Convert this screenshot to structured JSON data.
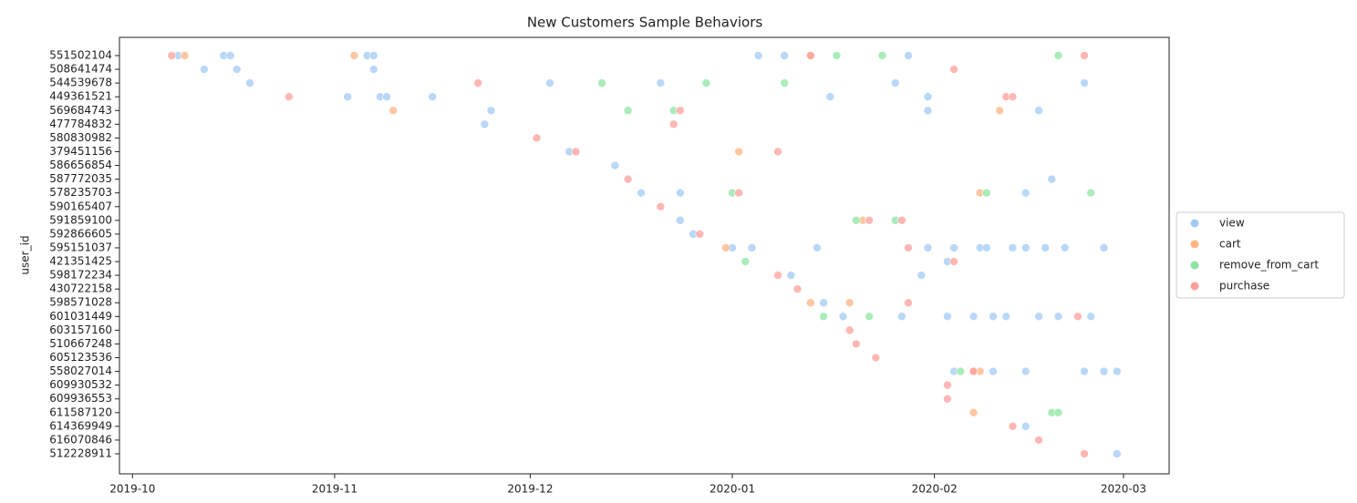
{
  "chart_data": {
    "type": "scatter",
    "title": "New Customers Sample Behaviors",
    "ylabel": "user_id",
    "categories": [
      "551502104",
      "508641474",
      "544539678",
      "449361521",
      "569684743",
      "477784832",
      "580830982",
      "379451156",
      "586656854",
      "587772035",
      "578235703",
      "590165407",
      "591859100",
      "592866605",
      "595151037",
      "421351425",
      "598172234",
      "430722158",
      "598571028",
      "601031449",
      "603157160",
      "510667248",
      "605123536",
      "558027014",
      "609930532",
      "609936553",
      "611587120",
      "614369949",
      "616070846",
      "512228911"
    ],
    "xlim": [
      "2019-09-29",
      "2020-03-08"
    ],
    "xticks": [
      {
        "value": "2019-10-01",
        "label": "2019-10"
      },
      {
        "value": "2019-11-01",
        "label": "2019-11"
      },
      {
        "value": "2019-12-01",
        "label": "2019-12"
      },
      {
        "value": "2020-01-01",
        "label": "2020-01"
      },
      {
        "value": "2020-02-01",
        "label": "2020-02"
      },
      {
        "value": "2020-03-01",
        "label": "2020-03"
      }
    ],
    "legend": "right",
    "series": [
      {
        "name": "view",
        "color": "#a1c9f4",
        "x": [
          "2019-10-08",
          "2019-10-15",
          "2019-10-16",
          "2019-11-06",
          "2019-11-07",
          "2020-01-05",
          "2020-01-09",
          "2020-01-28",
          "2019-10-12",
          "2019-10-17",
          "2019-11-07",
          "2019-10-19",
          "2019-12-04",
          "2019-12-21",
          "2020-01-26",
          "2020-02-24",
          "2019-11-03",
          "2019-11-08",
          "2019-11-09",
          "2019-11-16",
          "2020-01-16",
          "2020-01-31",
          "2019-11-25",
          "2020-01-31",
          "2020-02-17",
          "2019-11-24",
          "2019-12-07",
          "2019-12-14",
          "2020-02-19",
          "2019-12-18",
          "2019-12-24",
          "2020-02-15",
          "2019-12-24",
          "2019-12-26",
          "2020-01-01",
          "2020-01-04",
          "2020-01-14",
          "2020-01-31",
          "2020-02-04",
          "2020-02-08",
          "2020-02-09",
          "2020-02-13",
          "2020-02-15",
          "2020-02-18",
          "2020-02-21",
          "2020-02-27",
          "2020-02-03",
          "2020-01-10",
          "2020-01-30",
          "2020-01-15",
          "2020-01-18",
          "2020-01-27",
          "2020-02-03",
          "2020-02-07",
          "2020-02-10",
          "2020-02-12",
          "2020-02-17",
          "2020-02-20",
          "2020-02-25",
          "2020-02-04",
          "2020-02-10",
          "2020-02-15",
          "2020-02-24",
          "2020-02-27",
          "2020-02-29",
          "2020-02-15",
          "2020-02-29"
        ],
        "y": [
          "551502104",
          "551502104",
          "551502104",
          "551502104",
          "551502104",
          "551502104",
          "551502104",
          "551502104",
          "508641474",
          "508641474",
          "508641474",
          "544539678",
          "544539678",
          "544539678",
          "544539678",
          "544539678",
          "449361521",
          "449361521",
          "449361521",
          "449361521",
          "449361521",
          "449361521",
          "569684743",
          "569684743",
          "569684743",
          "477784832",
          "379451156",
          "586656854",
          "587772035",
          "578235703",
          "578235703",
          "578235703",
          "591859100",
          "592866605",
          "595151037",
          "595151037",
          "595151037",
          "595151037",
          "595151037",
          "595151037",
          "595151037",
          "595151037",
          "595151037",
          "595151037",
          "595151037",
          "595151037",
          "421351425",
          "598172234",
          "598172234",
          "598571028",
          "601031449",
          "601031449",
          "601031449",
          "601031449",
          "601031449",
          "601031449",
          "601031449",
          "601031449",
          "601031449",
          "558027014",
          "558027014",
          "558027014",
          "558027014",
          "558027014",
          "558027014",
          "614369949",
          "512228911"
        ]
      },
      {
        "name": "cart",
        "color": "#ffb482",
        "x": [
          "2019-10-09",
          "2019-11-04",
          "2020-01-13",
          "2019-11-10",
          "2020-02-11",
          "2020-01-02",
          "2020-02-08",
          "2020-01-21",
          "2019-12-31",
          "2020-01-13",
          "2020-01-19",
          "2020-02-07",
          "2020-02-08",
          "2020-02-07"
        ],
        "y": [
          "551502104",
          "551502104",
          "551502104",
          "569684743",
          "569684743",
          "379451156",
          "578235703",
          "591859100",
          "595151037",
          "598571028",
          "598571028",
          "558027014",
          "558027014",
          "611587120"
        ]
      },
      {
        "name": "remove_from_cart",
        "color": "#8de5a1",
        "x": [
          "2020-01-17",
          "2020-01-24",
          "2020-02-20",
          "2019-12-12",
          "2019-12-28",
          "2020-01-09",
          "2019-12-16",
          "2019-12-23",
          "2020-01-01",
          "2020-02-09",
          "2020-02-25",
          "2020-01-20",
          "2020-01-26",
          "2020-01-03",
          "2020-01-15",
          "2020-01-22",
          "2020-02-05",
          "2020-02-19",
          "2020-02-20"
        ],
        "y": [
          "551502104",
          "551502104",
          "551502104",
          "544539678",
          "544539678",
          "544539678",
          "569684743",
          "569684743",
          "578235703",
          "578235703",
          "578235703",
          "591859100",
          "591859100",
          "421351425",
          "601031449",
          "601031449",
          "558027014",
          "611587120",
          "611587120"
        ]
      },
      {
        "name": "purchase",
        "color": "#ff9f9b",
        "x": [
          "2019-10-07",
          "2020-01-13",
          "2020-02-24",
          "2020-02-04",
          "2019-11-23",
          "2019-10-25",
          "2020-02-12",
          "2020-02-13",
          "2019-12-24",
          "2019-12-23",
          "2019-12-02",
          "2019-12-08",
          "2020-01-08",
          "2019-12-16",
          "2020-01-02",
          "2019-12-21",
          "2020-01-22",
          "2020-01-27",
          "2019-12-27",
          "2020-01-28",
          "2020-02-04",
          "2020-01-08",
          "2020-01-11",
          "2020-01-28",
          "2020-02-23",
          "2020-01-19",
          "2020-01-20",
          "2020-01-23",
          "2020-02-07",
          "2020-02-03",
          "2020-02-03",
          "2020-02-13",
          "2020-02-17",
          "2020-02-24"
        ],
        "y": [
          "551502104",
          "551502104",
          "551502104",
          "508641474",
          "544539678",
          "449361521",
          "449361521",
          "449361521",
          "569684743",
          "477784832",
          "580830982",
          "379451156",
          "379451156",
          "587772035",
          "578235703",
          "590165407",
          "591859100",
          "591859100",
          "592866605",
          "595151037",
          "421351425",
          "598172234",
          "430722158",
          "598571028",
          "601031449",
          "603157160",
          "510667248",
          "605123536",
          "558027014",
          "609930532",
          "609936553",
          "614369949",
          "616070846",
          "512228911"
        ]
      }
    ]
  }
}
